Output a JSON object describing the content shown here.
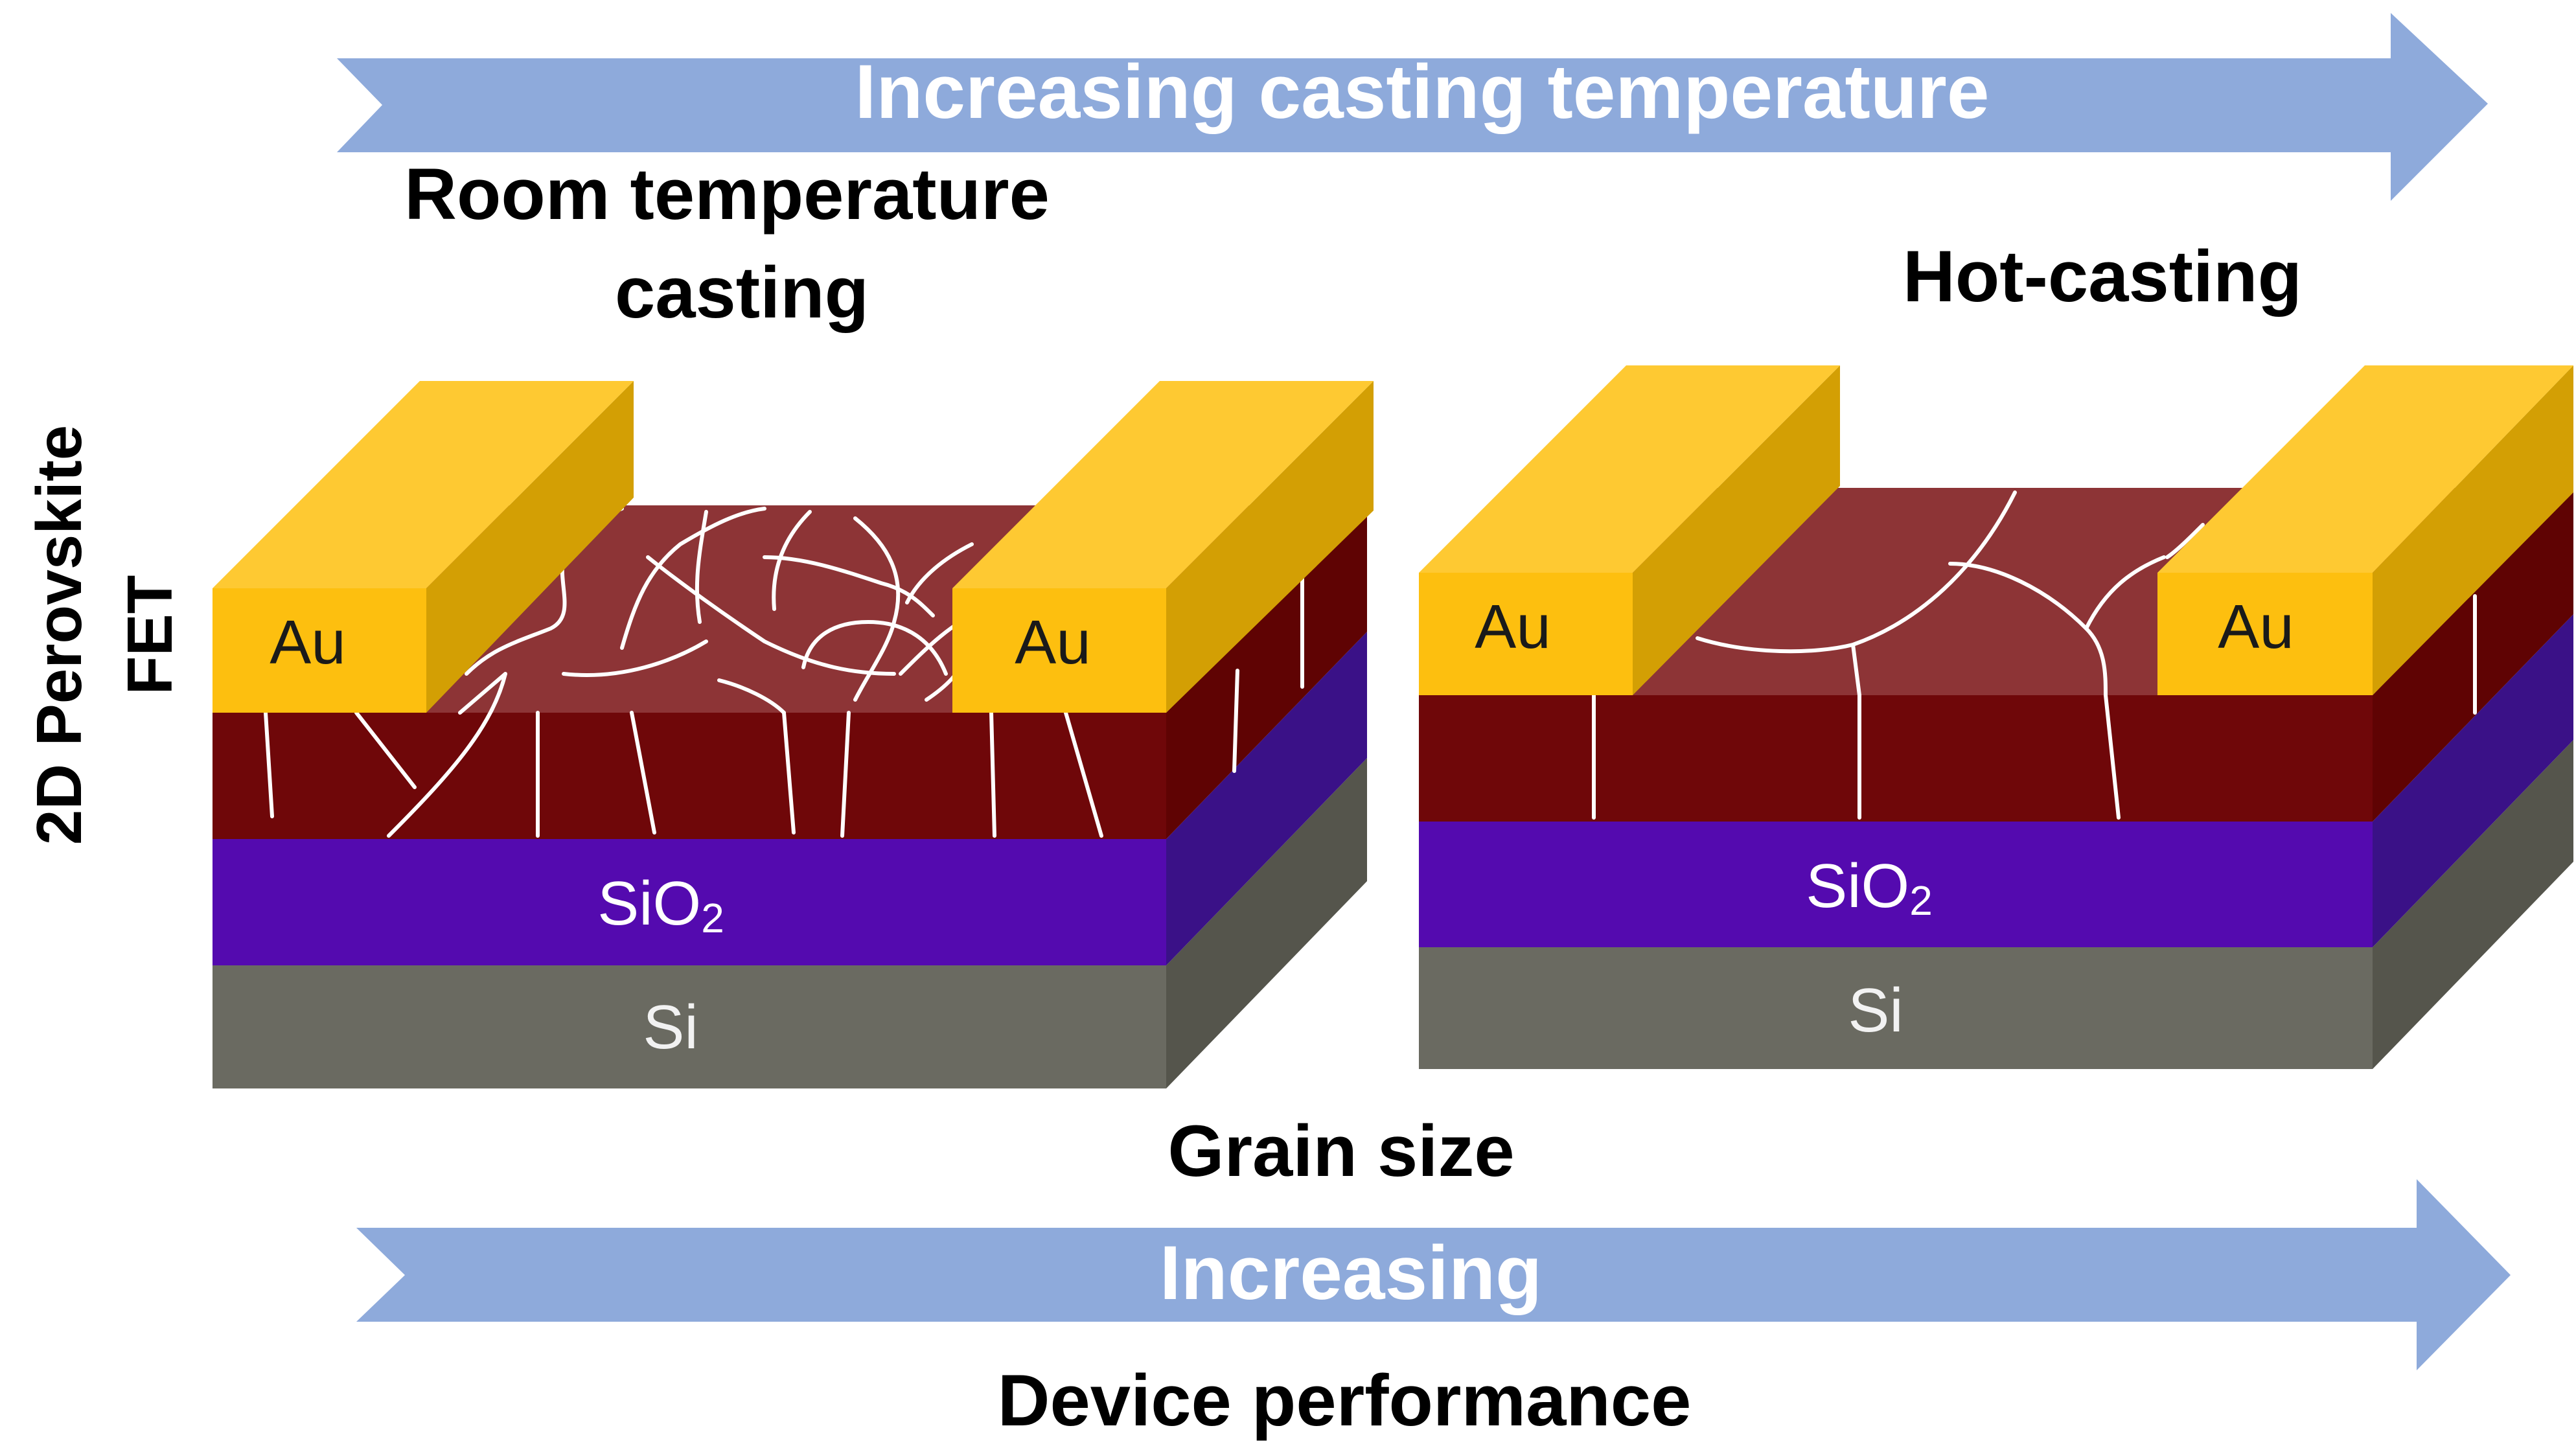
{
  "top_arrow": {
    "label": "Increasing casting temperature"
  },
  "bottom_arrow": {
    "label": "Increasing"
  },
  "side_label": {
    "line1": "2D Perovskite",
    "line2": "FET"
  },
  "left_device": {
    "title_line1": "Room temperature",
    "title_line2": "casting",
    "electrode_left": "Au",
    "electrode_right": "Au",
    "oxide": "SiO",
    "oxide_subscript": "2",
    "substrate": "Si"
  },
  "right_device": {
    "title": "Hot-casting",
    "electrode_left": "Au",
    "electrode_right": "Au",
    "oxide": "SiO",
    "oxide_subscript": "2",
    "substrate": "Si"
  },
  "grain_size_label": "Grain size",
  "device_performance_label": "Device performance",
  "colors": {
    "arrow": "#8eaadb",
    "gold_front": "#fdbf0f",
    "gold_top": "#fec932",
    "gold_side": "#d39f04",
    "perovskite_top": "#8d3436",
    "perovskite_front": "#6f0709",
    "perovskite_side": "#5f0303",
    "sio2_front": "#540aaf",
    "sio2_side": "#3a1187",
    "si_front": "#6a6a61",
    "si_side": "#55554c"
  }
}
